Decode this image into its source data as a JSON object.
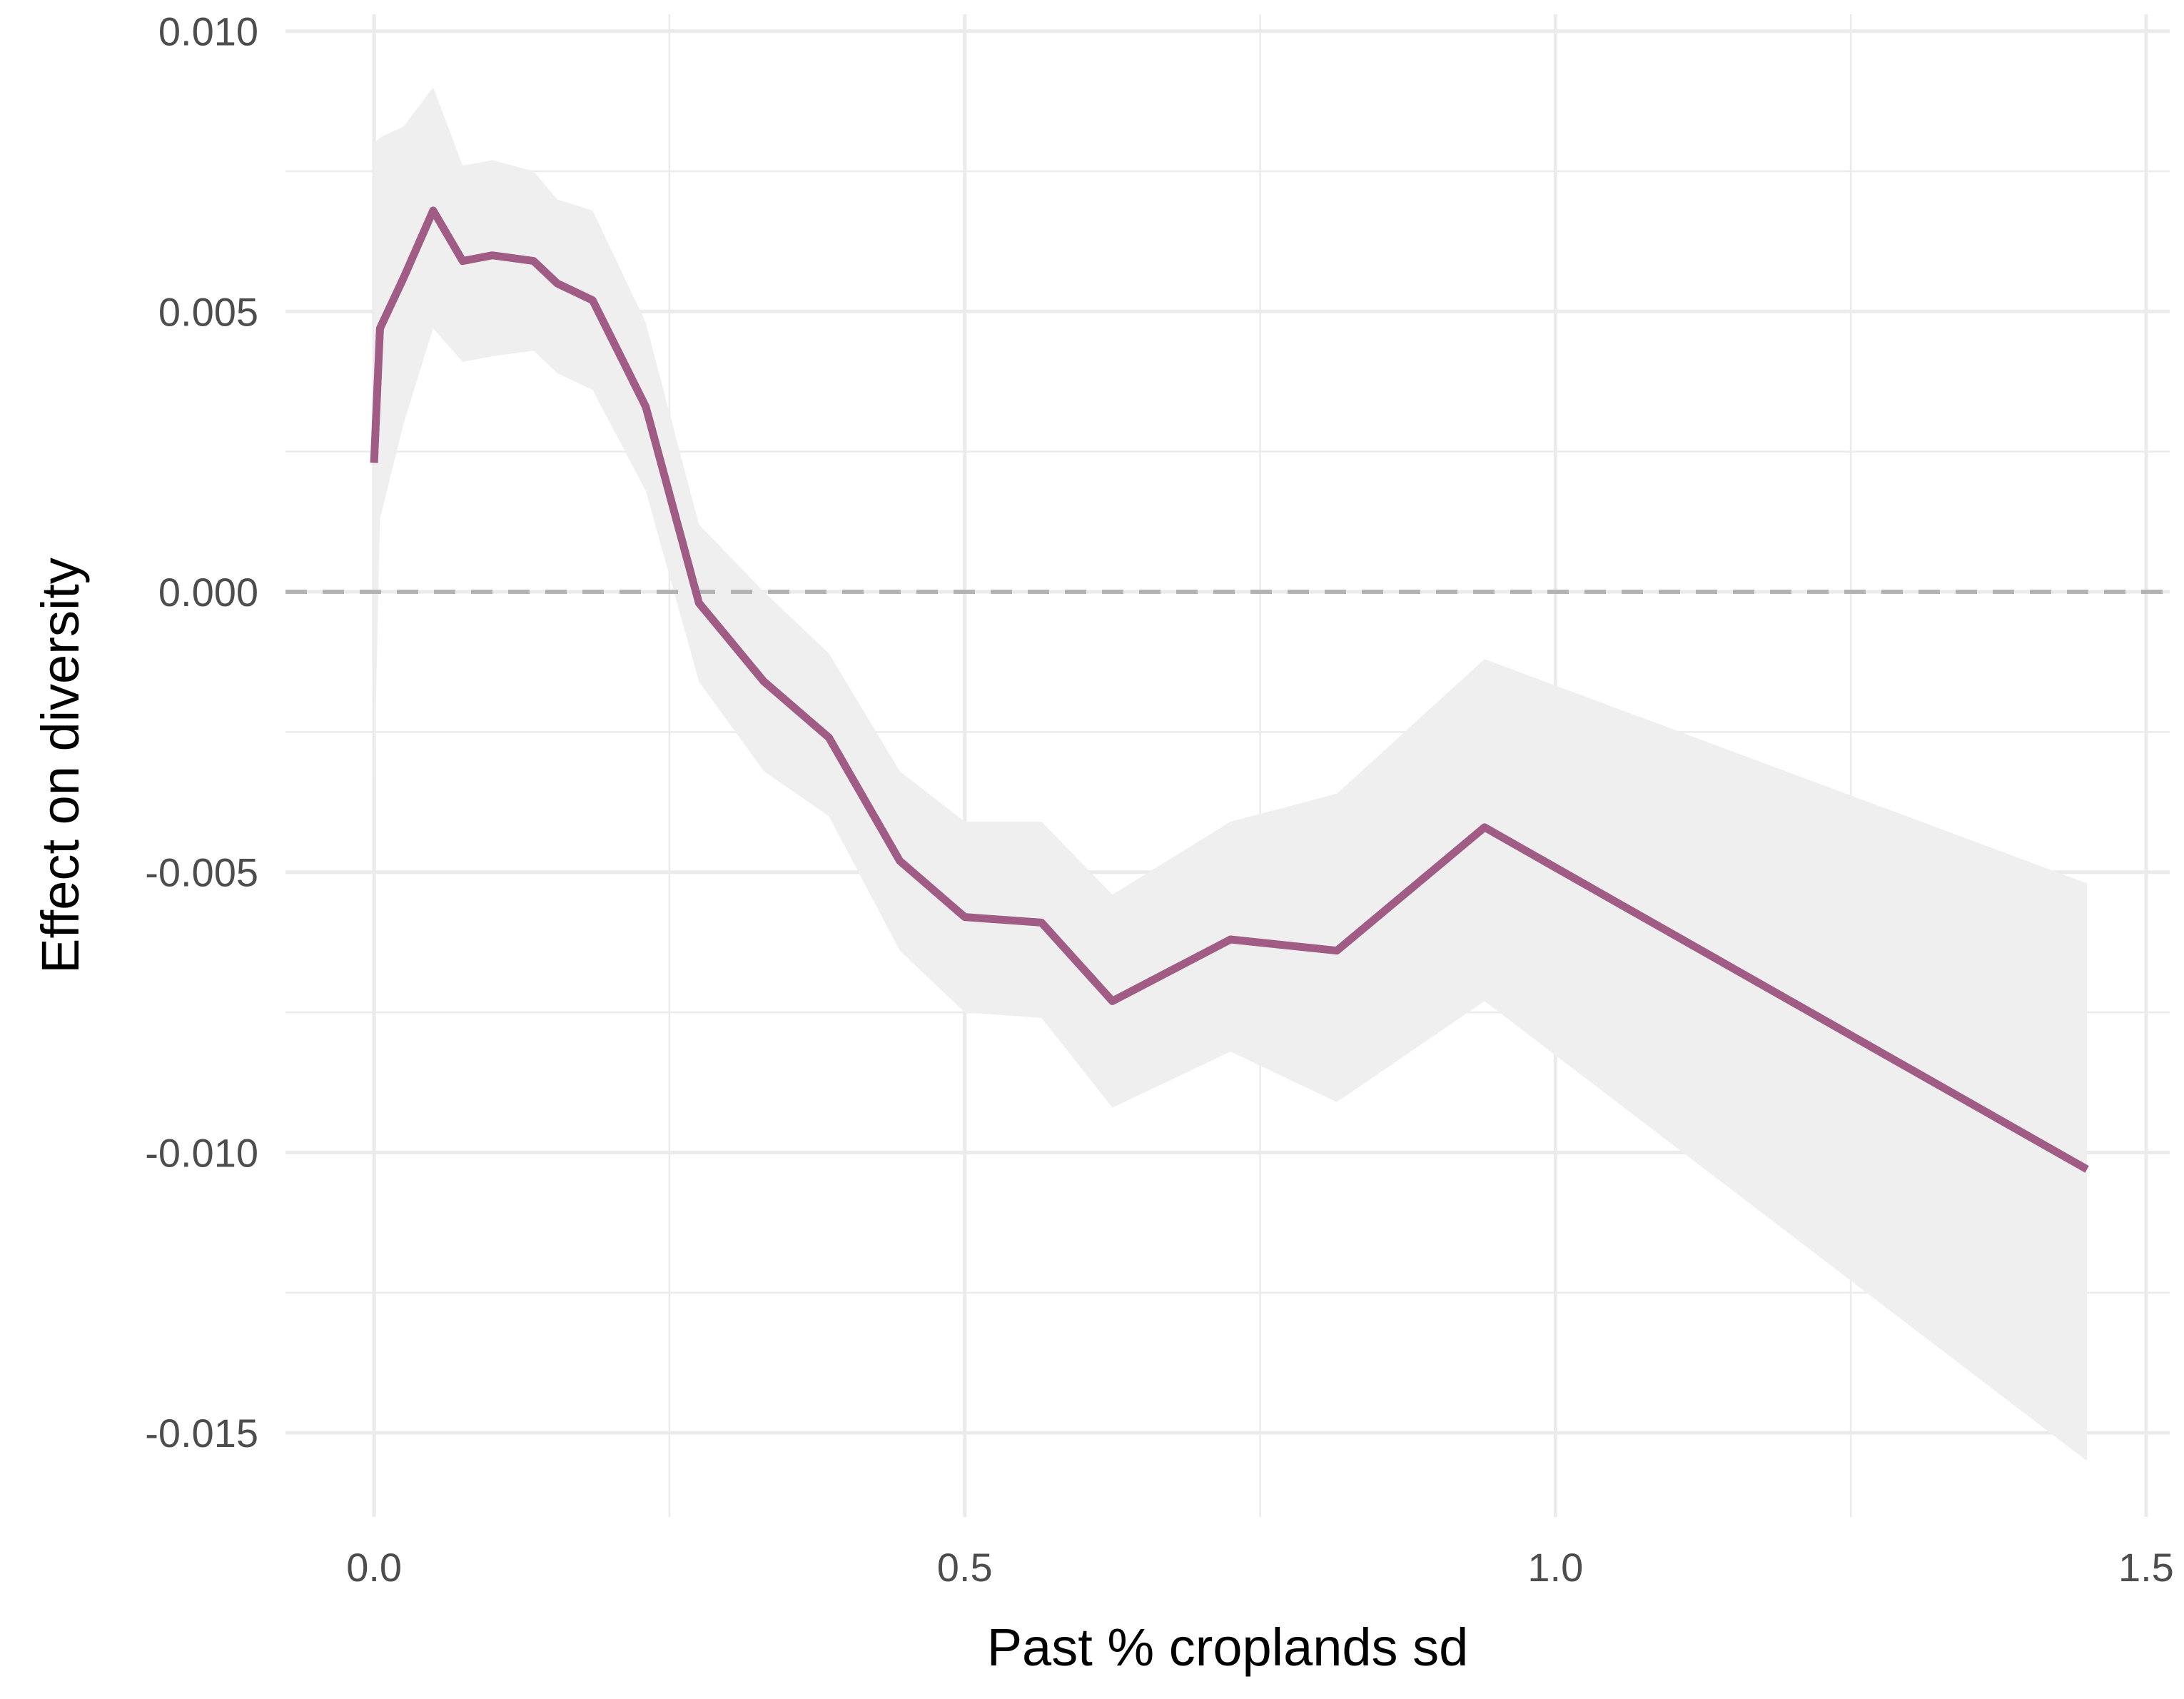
{
  "chart_data": {
    "type": "line",
    "title": "",
    "xlabel": "Past % croplands sd",
    "ylabel": "Effect on diversity",
    "xlim": [
      -0.075,
      1.52
    ],
    "ylim": [
      -0.0165,
      0.0103
    ],
    "x_ticks": [
      0.0,
      0.5,
      1.0,
      1.5
    ],
    "x_tick_labels": [
      "0.0",
      "0.5",
      "1.0",
      "1.5"
    ],
    "y_ticks": [
      0.01,
      0.005,
      0.0,
      -0.005,
      -0.01,
      -0.015
    ],
    "y_tick_labels": [
      "0.010",
      "0.005",
      "0.000",
      "-0.005",
      "-0.010",
      "-0.015"
    ],
    "grid": true,
    "legend": "none",
    "reference_line": {
      "y": 0.0,
      "style": "dashed",
      "color": "#b3b3b3"
    },
    "colors": {
      "line": "#a15c86",
      "ribbon": "#efefef",
      "grid": "#ebebeb"
    },
    "series": [
      {
        "x": [
          0.0,
          0.005,
          0.025,
          0.05,
          0.075,
          0.1,
          0.135,
          0.155,
          0.185,
          0.23,
          0.275,
          0.33,
          0.385,
          0.445,
          0.5,
          0.565,
          0.625,
          0.725,
          0.815,
          0.94,
          1.45
        ],
        "y": [
          0.0023,
          0.0047,
          0.0056,
          0.0068,
          0.0059,
          0.006,
          0.0059,
          0.0055,
          0.0052,
          0.0033,
          -0.0002,
          -0.0016,
          -0.0026,
          -0.0048,
          -0.0058,
          -0.0059,
          -0.0073,
          -0.0062,
          -0.0064,
          -0.0042,
          -0.0103
        ],
        "lower": [
          -0.0035,
          0.0013,
          0.003,
          0.0047,
          0.0041,
          0.0042,
          0.0043,
          0.0039,
          0.0036,
          0.0018,
          -0.0016,
          -0.0032,
          -0.004,
          -0.0064,
          -0.0075,
          -0.0076,
          -0.0092,
          -0.0082,
          -0.0091,
          -0.0073,
          -0.0155
        ],
        "upper": [
          0.008,
          0.0081,
          0.0083,
          0.009,
          0.0076,
          0.0077,
          0.0075,
          0.007,
          0.0068,
          0.0048,
          0.0012,
          0.0,
          -0.0011,
          -0.0032,
          -0.0041,
          -0.0041,
          -0.0054,
          -0.0041,
          -0.0036,
          -0.0012,
          -0.0052
        ]
      }
    ]
  }
}
